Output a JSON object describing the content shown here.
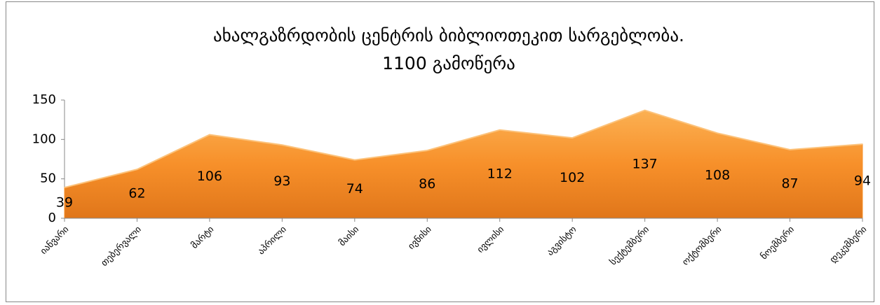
{
  "chart_data": {
    "type": "area",
    "title": "ახალგაზრდობის ცენტრის ბიბლიოთეკით სარგებლობა.",
    "subtitle": "1100 გამოწერა",
    "categories": [
      "იანვარი",
      "თებერვალი",
      "მარტი",
      "აპრილი",
      "მაისი",
      "ივნისი",
      "ივლისი",
      "აგვისტო",
      "სექტემბერი",
      "ოქტომბერი",
      "ნოემბერი",
      "დეკემბერი"
    ],
    "values": [
      39,
      62,
      106,
      93,
      74,
      86,
      112,
      102,
      137,
      108,
      87,
      94
    ],
    "color": "#f7902a",
    "ylim": [
      0,
      150
    ],
    "yticks": [
      0,
      50,
      100,
      150
    ],
    "grid": false
  }
}
